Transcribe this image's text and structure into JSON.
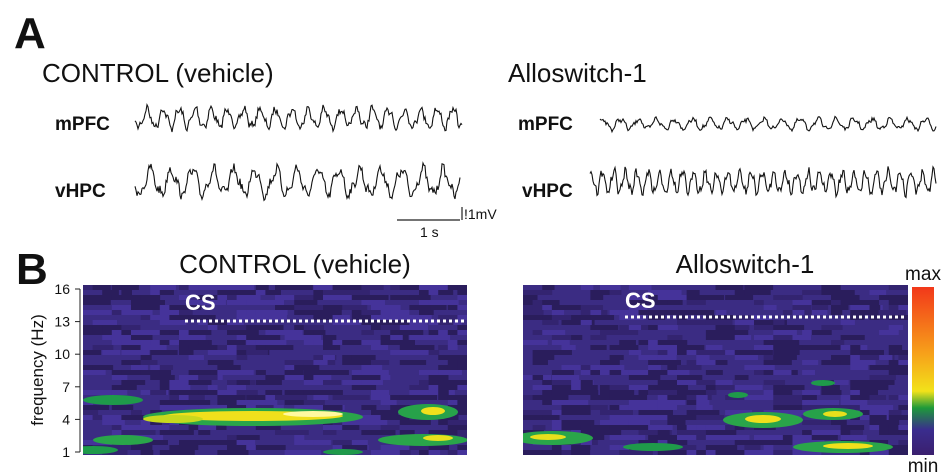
{
  "panel_a": {
    "label": "A",
    "left": {
      "title": "CONTROL (vehicle)",
      "channels": [
        "mPFC",
        "vHPC"
      ]
    },
    "right": {
      "title": "Alloswitch-1",
      "channels": [
        "mPFC",
        "vHPC"
      ]
    },
    "scale_bar": {
      "voltage": "!1mV",
      "time": "1 s"
    }
  },
  "panel_b": {
    "label": "B",
    "left": {
      "title": "CONTROL (vehicle)",
      "marker": "CS"
    },
    "right": {
      "title": "Alloswitch-1",
      "marker": "CS"
    },
    "frequency_axis": {
      "label": "frequency (Hz)",
      "ylim": [
        1,
        16
      ],
      "yticks": [
        1,
        4,
        7,
        10,
        13,
        16
      ]
    },
    "colorbar": {
      "max": "max",
      "min": "min"
    }
  }
}
